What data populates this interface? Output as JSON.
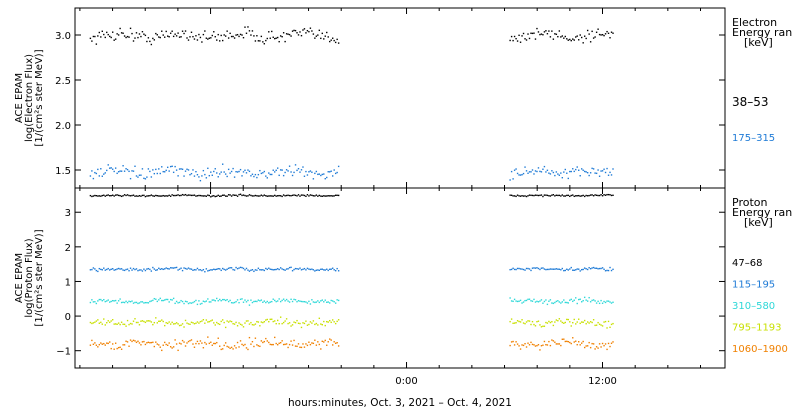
{
  "xlabel": "hours:minutes, Oct.  3, 2021 – Oct.  4, 2021",
  "x_ticks": [
    "0:00",
    "12:00"
  ],
  "chart_data": [
    {
      "type": "scatter",
      "ylabel_lines": [
        "ACE EPAM",
        "log(Electron Flux)",
        "[1/(cm²s ster MeV)]"
      ],
      "ylim": [
        1.3,
        3.3
      ],
      "y_ticks": [
        1.5,
        2.0,
        2.5,
        3.0
      ],
      "y_tick_labels": [
        "1.5",
        "2.0",
        "2.5",
        "3.0"
      ],
      "legend_title_lines": [
        "Electron",
        "Energy ran",
        "[keV]"
      ],
      "series": [
        {
          "name": "38–53",
          "color": "#000000",
          "mean": 3.0,
          "spread": 0.06
        },
        {
          "name": "175–315",
          "color": "#1f7bd6",
          "mean": 1.48,
          "spread": 0.05
        }
      ]
    },
    {
      "type": "scatter",
      "ylabel_lines": [
        "ACE EPAM",
        "log(Proton Flux)",
        "[1/(cm²s ster MeV)]"
      ],
      "ylim": [
        -1.5,
        3.7
      ],
      "y_ticks": [
        -1,
        0,
        1,
        2,
        3
      ],
      "y_tick_labels": [
        "−1",
        "0",
        "1",
        "2",
        "3"
      ],
      "legend_title_lines": [
        "Proton",
        "Energy ran",
        "[keV]"
      ],
      "series": [
        {
          "name": "47–68",
          "color": "#000000",
          "mean": 3.5,
          "spread": 0.02
        },
        {
          "name": "115–195",
          "color": "#1f7bd6",
          "mean": 1.37,
          "spread": 0.04
        },
        {
          "name": "310–580",
          "color": "#2fd8d8",
          "mean": 0.45,
          "spread": 0.06
        },
        {
          "name": "795–1193",
          "color": "#c8e000",
          "mean": -0.17,
          "spread": 0.08
        },
        {
          "name": "1060–1900",
          "color": "#f08000",
          "mean": -0.78,
          "spread": 0.12
        }
      ]
    }
  ],
  "data_coverage": [
    {
      "start_hour": -19.4,
      "end_hour": -4.2
    },
    {
      "start_hour": 6.3,
      "end_hour": 12.6
    }
  ],
  "x_range_hours": [
    -20.3,
    19.5
  ]
}
